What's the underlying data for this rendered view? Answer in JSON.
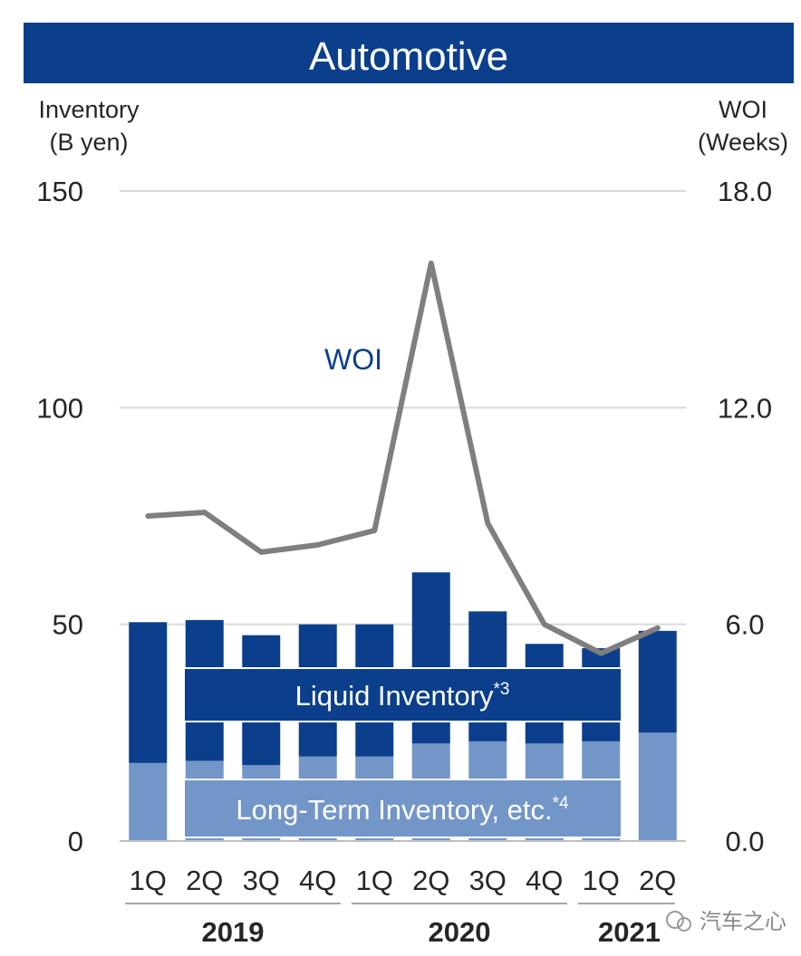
{
  "chart_data": {
    "type": "bar",
    "title": "Automotive",
    "left_axis_label": [
      "Inventory",
      "(B yen)"
    ],
    "right_axis_label": [
      "WOI",
      "(Weeks)"
    ],
    "left_ticks": [
      "0",
      "50",
      "100",
      "150"
    ],
    "left_tick_values": [
      0,
      50,
      100,
      150
    ],
    "right_ticks": [
      "0.0",
      "6.0",
      "12.0",
      "18.0"
    ],
    "ylim_left": [
      0,
      150
    ],
    "ylim_right": [
      0,
      18
    ],
    "stacked": true,
    "grid": true,
    "categories": [
      "1Q",
      "2Q",
      "3Q",
      "4Q",
      "1Q",
      "2Q",
      "3Q",
      "4Q",
      "1Q",
      "2Q"
    ],
    "years": [
      {
        "label": "2019",
        "start": 0,
        "end": 3
      },
      {
        "label": "2020",
        "start": 4,
        "end": 7
      },
      {
        "label": "2021",
        "start": 8,
        "end": 9
      }
    ],
    "series": [
      {
        "name": "Long-Term Inventory, etc.",
        "sup": "*4",
        "color": "#7396c8",
        "values": [
          18,
          18.5,
          17.5,
          19.5,
          19.5,
          22.5,
          23,
          22.5,
          23,
          25
        ]
      },
      {
        "name": "Liquid Inventory",
        "sup": "*3",
        "color": "#0b3f8c",
        "values": [
          32.5,
          32.5,
          30,
          30.5,
          30.5,
          39.5,
          30,
          23,
          21.5,
          23.5
        ]
      }
    ],
    "line": {
      "name": "WOI",
      "color": "#7f7f7f",
      "values": [
        9.0,
        9.1,
        8.0,
        8.2,
        8.6,
        16.0,
        8.8,
        6.0,
        5.2,
        5.9
      ]
    }
  },
  "watermark": "汽车之心"
}
